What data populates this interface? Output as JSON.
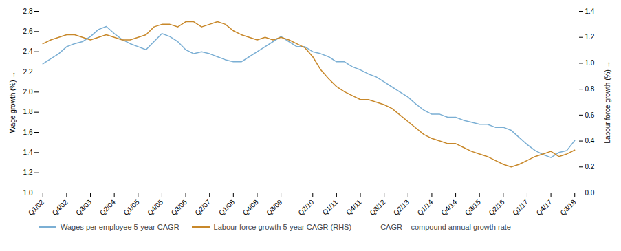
{
  "chart_data": {
    "type": "line",
    "categories": [
      "Q1/02",
      null,
      null,
      "Q4/02",
      null,
      null,
      "Q3/03",
      null,
      null,
      "Q2/04",
      null,
      null,
      "Q1/05",
      null,
      null,
      "Q4/05",
      null,
      null,
      "Q3/06",
      null,
      null,
      "Q2/07",
      null,
      null,
      "Q1/08",
      null,
      null,
      "Q4/08",
      null,
      null,
      "Q3/09",
      null,
      null,
      null,
      "Q2/10",
      null,
      null,
      "Q1/11",
      null,
      null,
      "Q4/11",
      null,
      null,
      "Q3/12",
      null,
      null,
      "Q2/13",
      null,
      null,
      "Q1/14",
      null,
      null,
      "Q4/14",
      null,
      null,
      "Q3/15",
      null,
      null,
      "Q2/16",
      null,
      null,
      "Q1/17",
      null,
      null,
      "Q4/17",
      null,
      null,
      "Q3/18"
    ],
    "series": [
      {
        "name": "Wages per employee 5-year CAGR",
        "color": "#7BAFD4",
        "axis": "y",
        "values": [
          2.28,
          2.33,
          2.38,
          2.45,
          2.48,
          2.5,
          2.55,
          2.62,
          2.65,
          2.58,
          2.52,
          2.48,
          2.45,
          2.42,
          2.5,
          2.58,
          2.55,
          2.5,
          2.42,
          2.38,
          2.4,
          2.38,
          2.35,
          2.32,
          2.3,
          2.3,
          2.35,
          2.4,
          2.45,
          2.5,
          2.55,
          2.5,
          2.45,
          2.45,
          2.4,
          2.38,
          2.35,
          2.3,
          2.3,
          2.25,
          2.22,
          2.18,
          2.15,
          2.1,
          2.05,
          2.0,
          1.95,
          1.88,
          1.82,
          1.78,
          1.78,
          1.75,
          1.75,
          1.72,
          1.7,
          1.68,
          1.68,
          1.65,
          1.65,
          1.62,
          1.55,
          1.48,
          1.42,
          1.38,
          1.35,
          1.4,
          1.42,
          1.52
        ]
      },
      {
        "name": "Labour force growth 5-year CAGR (RHS)",
        "color": "#C8882A",
        "axis": "y2",
        "values": [
          1.15,
          1.18,
          1.2,
          1.22,
          1.22,
          1.2,
          1.18,
          1.2,
          1.22,
          1.2,
          1.18,
          1.18,
          1.2,
          1.22,
          1.28,
          1.3,
          1.3,
          1.28,
          1.32,
          1.32,
          1.28,
          1.3,
          1.32,
          1.3,
          1.25,
          1.22,
          1.2,
          1.18,
          1.2,
          1.18,
          1.2,
          1.18,
          1.15,
          1.12,
          1.05,
          0.95,
          0.88,
          0.82,
          0.78,
          0.75,
          0.72,
          0.72,
          0.7,
          0.68,
          0.65,
          0.6,
          0.55,
          0.5,
          0.45,
          0.42,
          0.4,
          0.38,
          0.38,
          0.35,
          0.32,
          0.3,
          0.28,
          0.25,
          0.22,
          0.2,
          0.22,
          0.25,
          0.28,
          0.3,
          0.32,
          0.28,
          0.3,
          0.33
        ]
      }
    ],
    "ylabel": "Wage growth (%)",
    "y2label": "Labour force growth (%)",
    "ylim": [
      1.0,
      2.8
    ],
    "yticks": [
      {
        "value": 1.0,
        "label": "1.0"
      },
      1.2,
      1.4,
      1.6,
      1.8,
      {
        "value": 2.0,
        "label": "2.0"
      },
      2.2,
      2.4,
      2.6,
      2.8
    ],
    "y2lim": [
      0.0,
      1.4
    ],
    "y2ticks": [
      {
        "value": 0.0,
        "label": "0.0"
      },
      0.2,
      0.4,
      0.6,
      0.8,
      {
        "value": 1.0,
        "label": "1.0"
      },
      1.2,
      1.4
    ],
    "baseline": {
      "value": 1.0,
      "color": "#909090"
    },
    "annotations": [
      "CAGR = compound annual growth rate"
    ],
    "legend": "bottom",
    "grid": false
  }
}
